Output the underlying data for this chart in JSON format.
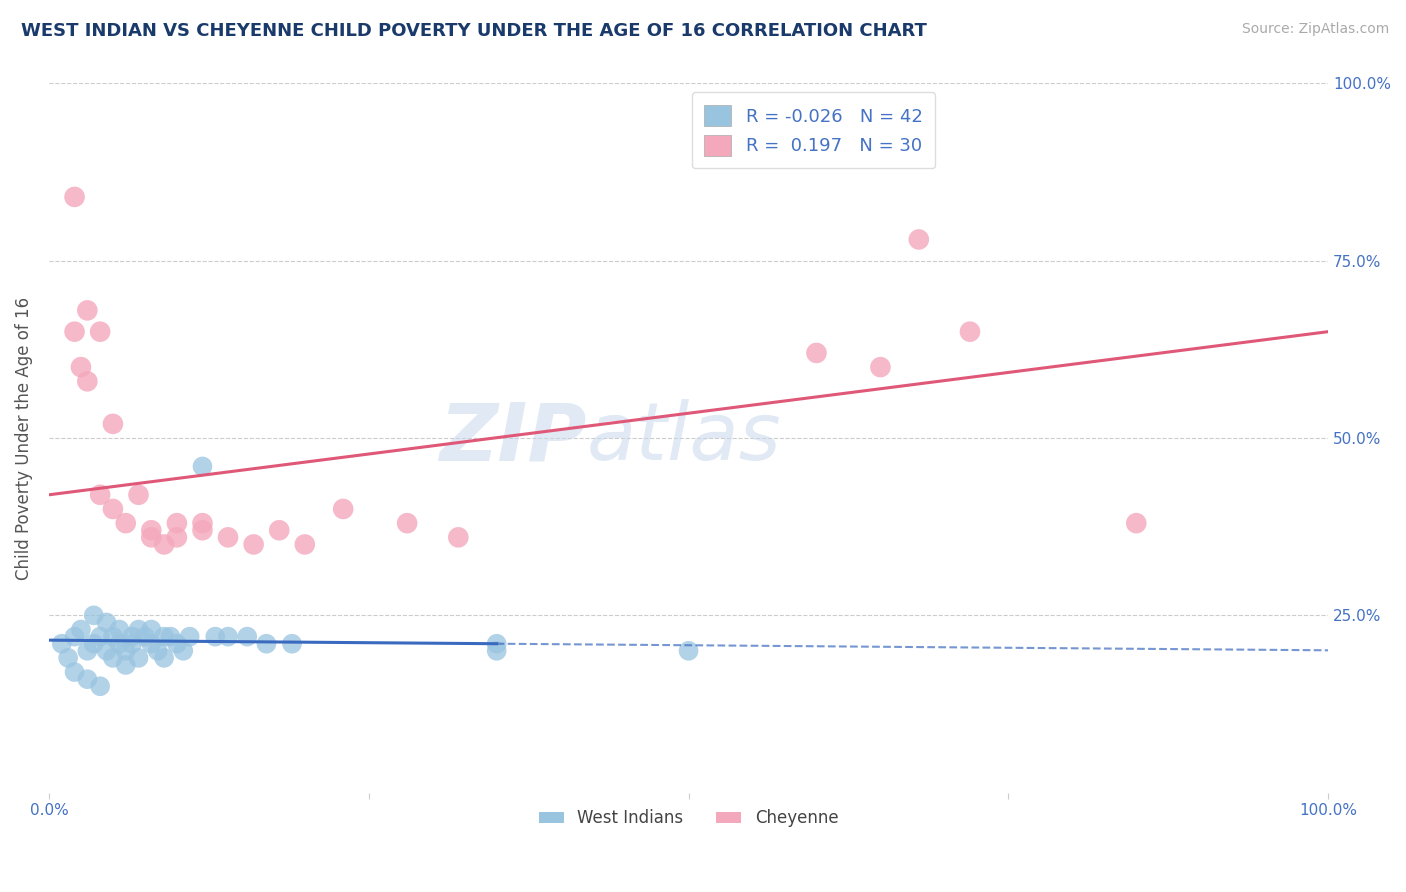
{
  "title": "WEST INDIAN VS CHEYENNE CHILD POVERTY UNDER THE AGE OF 16 CORRELATION CHART",
  "source": "Source: ZipAtlas.com",
  "ylabel": "Child Poverty Under the Age of 16",
  "xlim": [
    0,
    1.0
  ],
  "ylim": [
    0,
    1.0
  ],
  "watermark": "ZIPatlas",
  "west_indian_color": "#99c4e0",
  "cheyenne_color": "#f4a8bc",
  "west_indian_line_color": "#3a6abf",
  "cheyenne_line_color": "#e05878",
  "title_color": "#1a3a6b",
  "axis_color": "#4472c4",
  "grid_color": "#cccccc",
  "background_color": "#ffffff",
  "watermark_color": "#c8d8ec",
  "R_wi": -0.026,
  "N_wi": 42,
  "R_ch": 0.197,
  "N_ch": 30,
  "legend_label_wi": "West Indians",
  "legend_label_ch": "Cheyenne",
  "west_indian_x": [
    0.01,
    0.015,
    0.02,
    0.02,
    0.025,
    0.03,
    0.03,
    0.035,
    0.035,
    0.04,
    0.04,
    0.045,
    0.045,
    0.05,
    0.05,
    0.055,
    0.055,
    0.06,
    0.06,
    0.065,
    0.065,
    0.07,
    0.07,
    0.075,
    0.08,
    0.08,
    0.085,
    0.09,
    0.09,
    0.095,
    0.1,
    0.105,
    0.11,
    0.12,
    0.13,
    0.14,
    0.155,
    0.17,
    0.19,
    0.35,
    0.5,
    0.35
  ],
  "west_indian_y": [
    0.21,
    0.19,
    0.22,
    0.17,
    0.23,
    0.2,
    0.16,
    0.25,
    0.21,
    0.22,
    0.15,
    0.2,
    0.24,
    0.19,
    0.22,
    0.21,
    0.23,
    0.2,
    0.18,
    0.22,
    0.21,
    0.23,
    0.19,
    0.22,
    0.21,
    0.23,
    0.2,
    0.22,
    0.19,
    0.22,
    0.21,
    0.2,
    0.22,
    0.46,
    0.22,
    0.22,
    0.22,
    0.21,
    0.21,
    0.2,
    0.2,
    0.21
  ],
  "cheyenne_x": [
    0.02,
    0.025,
    0.03,
    0.04,
    0.05,
    0.06,
    0.07,
    0.08,
    0.09,
    0.1,
    0.12,
    0.14,
    0.16,
    0.18,
    0.2,
    0.23,
    0.28,
    0.32,
    0.6,
    0.65,
    0.68,
    0.72,
    0.85,
    0.02,
    0.03,
    0.04,
    0.05,
    0.08,
    0.1,
    0.12
  ],
  "cheyenne_y": [
    0.65,
    0.6,
    0.58,
    0.42,
    0.4,
    0.38,
    0.42,
    0.37,
    0.35,
    0.38,
    0.37,
    0.36,
    0.35,
    0.37,
    0.35,
    0.4,
    0.38,
    0.36,
    0.62,
    0.6,
    0.78,
    0.65,
    0.38,
    0.84,
    0.68,
    0.65,
    0.52,
    0.36,
    0.36,
    0.38
  ]
}
